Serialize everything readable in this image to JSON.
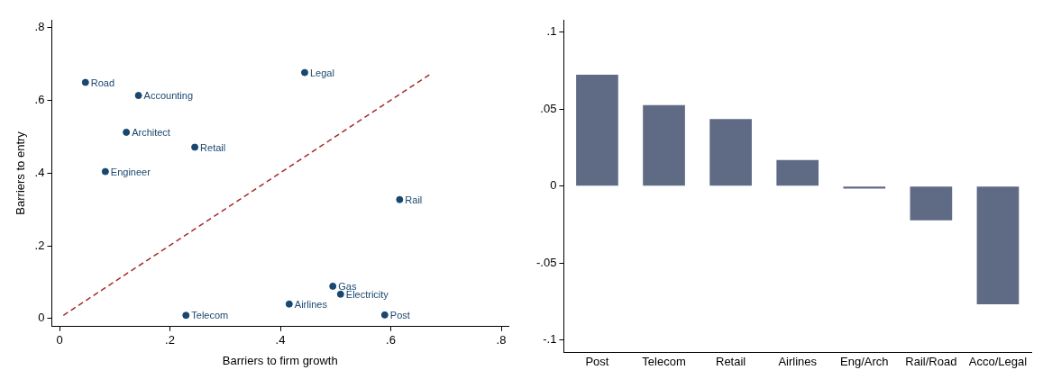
{
  "chart_data": [
    {
      "type": "scatter",
      "xlabel": "Barriers to firm growth",
      "ylabel": "Barriers to entry",
      "marker": "circle",
      "grid": false,
      "legend": false,
      "xlim": [
        -0.014,
        0.813
      ],
      "ylim": [
        -0.022,
        0.821
      ],
      "xticks": [
        0,
        {
          "value": 0.2,
          "label": ".2"
        },
        {
          "value": 0.4,
          "label": ".4"
        },
        {
          "value": 0.6,
          "label": ".6"
        },
        {
          "value": 0.8,
          "label": ".8"
        }
      ],
      "yticks": [
        0,
        {
          "value": 0.2,
          "label": ".2"
        },
        {
          "value": 0.4,
          "label": ".4"
        },
        {
          "value": 0.6,
          "label": ".6"
        },
        {
          "value": 0.8,
          "label": ".8"
        }
      ],
      "series": [
        {
          "type": "scatter",
          "color": "#1a476f",
          "x": [
            0.047,
            0.143,
            0.444,
            0.121,
            0.245,
            0.083,
            0.616,
            0.495,
            0.509,
            0.416,
            0.229,
            0.589
          ],
          "values": [
            0.649,
            0.613,
            0.676,
            0.512,
            0.471,
            0.404,
            0.327,
            0.089,
            0.067,
            0.04,
            0.009,
            0.01
          ]
        },
        {
          "type": "line",
          "color": "#a52a2a",
          "line_style": "dashed",
          "marker": "none",
          "x": [
            0.007,
            0.675
          ],
          "values": [
            0.009,
            0.675
          ]
        }
      ],
      "annotations": [
        {
          "text": "Road",
          "x": 0.047,
          "y": 0.649
        },
        {
          "text": "Accounting",
          "x": 0.143,
          "y": 0.613
        },
        {
          "text": "Legal",
          "x": 0.444,
          "y": 0.676
        },
        {
          "text": "Architect",
          "x": 0.121,
          "y": 0.512
        },
        {
          "text": "Retail",
          "x": 0.245,
          "y": 0.471
        },
        {
          "text": "Engineer",
          "x": 0.083,
          "y": 0.404
        },
        {
          "text": "Rail",
          "x": 0.616,
          "y": 0.327
        },
        {
          "text": "Gas",
          "x": 0.495,
          "y": 0.089
        },
        {
          "text": "Electricity",
          "x": 0.509,
          "y": 0.067
        },
        {
          "text": "Airlines",
          "x": 0.416,
          "y": 0.04
        },
        {
          "text": "Telecom",
          "x": 0.229,
          "y": 0.009
        },
        {
          "text": "Post",
          "x": 0.589,
          "y": 0.01
        }
      ]
    },
    {
      "type": "bar",
      "grid": false,
      "legend": false,
      "color": "#5f6b85",
      "categories": [
        "Post",
        "Telecom",
        "Retail",
        "Airlines",
        "Eng/Arch",
        "Rail/Road",
        "Acco/Legal"
      ],
      "values": [
        0.0723,
        0.0526,
        0.0435,
        0.0169,
        -0.0017,
        -0.0223,
        -0.0768
      ],
      "ylim": [
        -0.108,
        0.108
      ],
      "yticks": [
        {
          "value": -0.1,
          "label": "-.1"
        },
        {
          "value": -0.05,
          "label": "-.05"
        },
        0,
        {
          "value": 0.05,
          "label": ".05"
        },
        {
          "value": 0.1,
          "label": ".1"
        }
      ]
    }
  ]
}
